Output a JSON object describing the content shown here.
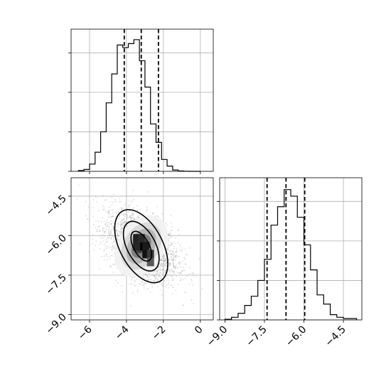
{
  "chart_data": {
    "type": "corner",
    "parameters": [
      {
        "symbol_range": [
          -7,
          0.7
        ]
      },
      {
        "symbol_range": [
          -9.2,
          -3.8
        ]
      }
    ],
    "colors": {
      "ink": "#000000",
      "grid": "#b0b0b0",
      "scatter": "#9a9a9a"
    },
    "panels": [
      {
        "kind": "histogram",
        "parameter": 0,
        "grid": true,
        "xlim": [
          -7,
          0.7
        ],
        "ylim": [
          0,
          1
        ],
        "bin_edges": [
          -6.6,
          -6.3,
          -6.0,
          -5.7,
          -5.4,
          -5.1,
          -4.8,
          -4.5,
          -4.2,
          -3.9,
          -3.6,
          -3.3,
          -3.0,
          -2.7,
          -2.4,
          -2.1,
          -1.8,
          -1.5,
          -1.2,
          -0.9,
          -0.6,
          -0.3,
          0.0
        ],
        "counts": [
          0.006,
          0.014,
          0.055,
          0.145,
          0.3,
          0.52,
          0.74,
          0.96,
          0.94,
          0.97,
          1.0,
          0.84,
          0.64,
          0.36,
          0.22,
          0.09,
          0.04,
          0.01,
          0.003,
          0.001,
          0.0,
          0.0
        ],
        "quantiles": [
          -4.12,
          -3.2,
          -2.27
        ],
        "xticks": [
          -6,
          -4,
          -2,
          0
        ],
        "yticks": [
          0.0,
          0.3,
          0.6,
          0.9
        ],
        "show_tick_labels": false
      },
      {
        "kind": "scatter_contour",
        "x_parameter": 0,
        "y_parameter": 1,
        "xlim": [
          -7,
          0.7
        ],
        "ylim": [
          -9.2,
          -3.8
        ],
        "grid": true,
        "xticks": [
          -6,
          -4,
          -2,
          0
        ],
        "xtick_labels": [
          "−6",
          "−4",
          "−2",
          "0"
        ],
        "yticks": [
          -4.5,
          -6.0,
          -7.5,
          -9.0
        ],
        "ytick_labels": [
          "−4.5",
          "−6.0",
          "−7.5",
          "−9.0"
        ],
        "center": [
          -3.2,
          -6.4
        ],
        "density_peak": [
          -3.2,
          -6.4
        ],
        "contour_levels": 3
      },
      {
        "kind": "histogram",
        "parameter": 1,
        "grid": true,
        "xlim": [
          -9.2,
          -3.8
        ],
        "ylim": [
          0,
          1
        ],
        "bin_edges": [
          -9.0,
          -8.75,
          -8.5,
          -8.25,
          -8.0,
          -7.75,
          -7.5,
          -7.25,
          -7.0,
          -6.75,
          -6.5,
          -6.25,
          -6.0,
          -5.75,
          -5.5,
          -5.25,
          -5.0,
          -4.75,
          -4.5,
          -4.25,
          -4.0
        ],
        "counts": [
          0.005,
          0.02,
          0.05,
          0.11,
          0.18,
          0.3,
          0.46,
          0.72,
          0.86,
          0.99,
          0.94,
          0.78,
          0.57,
          0.38,
          0.19,
          0.12,
          0.04,
          0.02,
          0.01,
          0.01
        ],
        "quantiles": [
          -7.4,
          -6.68,
          -5.97
        ],
        "xticks": [
          -9.0,
          -7.5,
          -6.0,
          -4.5
        ],
        "xtick_labels": [
          "−9.0",
          "−7.5",
          "−6.0",
          "−4.5"
        ],
        "yticks": [
          0.0,
          0.3,
          0.6,
          0.9
        ],
        "show_tick_labels": false
      }
    ]
  }
}
